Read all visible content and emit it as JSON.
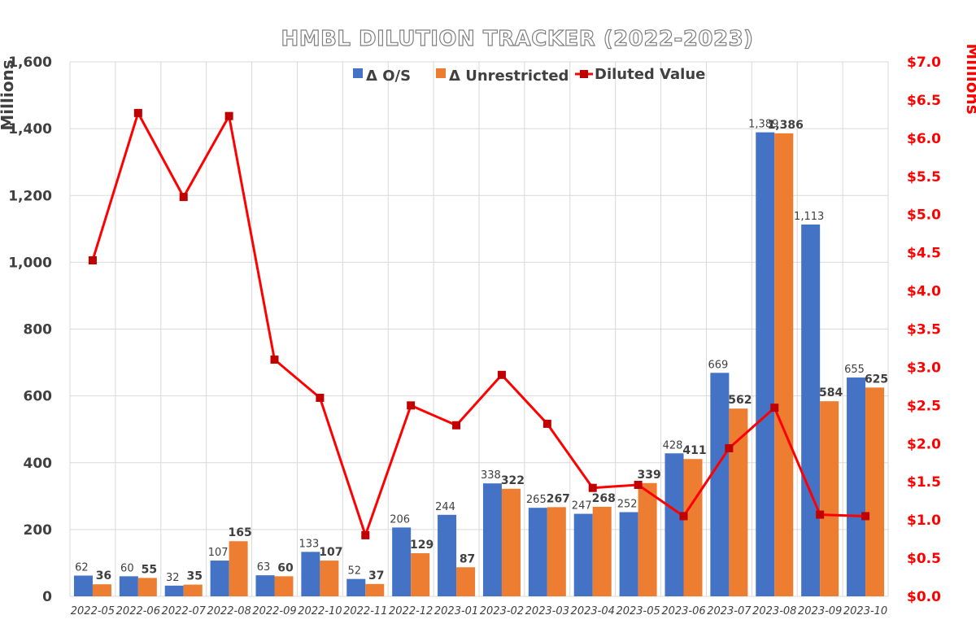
{
  "chart_data": {
    "type": "bar",
    "title": "HMBL DILUTION TRACKER (2022-2023)",
    "ylabel": "Millions",
    "y2label": "Millions",
    "ylim": [
      0,
      1600
    ],
    "y2lim": [
      0,
      7
    ],
    "yticks": [
      "0",
      "200",
      "400",
      "600",
      "800",
      "1,000",
      "1,200",
      "1,400",
      "1,600"
    ],
    "y2ticks": [
      "$0.0",
      "$0.5",
      "$1.0",
      "$1.5",
      "$2.0",
      "$2.5",
      "$3.0",
      "$3.5",
      "$4.0",
      "$4.5",
      "$5.0",
      "$5.5",
      "$6.0",
      "$6.5",
      "$7.0"
    ],
    "grid": true,
    "legend": "top-center",
    "categories": [
      "2022-05",
      "2022-06",
      "2022-07",
      "2022-08",
      "2022-09",
      "2022-10",
      "2022-11",
      "2022-12",
      "2023-01",
      "2023-02",
      "2023-03",
      "2023-04",
      "2023-05",
      "2023-06",
      "2023-07",
      "2023-08",
      "2023-09",
      "2023-10"
    ],
    "series": [
      {
        "name": "Δ O/S",
        "type": "bar",
        "color": "#4472c4",
        "values": [
          62,
          60,
          32,
          107,
          63,
          133,
          52,
          206,
          244,
          338,
          265,
          247,
          252,
          428,
          669,
          1389,
          1113,
          655
        ],
        "labels": [
          "62",
          "60",
          "32",
          "107",
          "63",
          "133",
          "52",
          "206",
          "244",
          "338",
          "265",
          "247",
          "252",
          "428",
          "669",
          "1,389",
          "1,113",
          "655"
        ]
      },
      {
        "name": "Δ Unrestricted",
        "type": "bar",
        "color": "#ed7d31",
        "values": [
          36,
          55,
          35,
          165,
          60,
          107,
          37,
          129,
          87,
          322,
          267,
          268,
          339,
          411,
          562,
          1386,
          584,
          625
        ],
        "labels": [
          "36",
          "55",
          "35",
          "165",
          "60",
          "107",
          "37",
          "129",
          "87",
          "322",
          "267",
          "268",
          "339",
          "411",
          "562",
          "1,386",
          "584",
          "625"
        ]
      },
      {
        "name": "Diluted Value",
        "type": "line",
        "axis": "right",
        "color": "#ff0000",
        "values": [
          4.4,
          6.33,
          5.23,
          6.29,
          3.1,
          2.6,
          0.8,
          2.5,
          2.24,
          2.9,
          2.26,
          1.42,
          1.46,
          1.05,
          1.94,
          2.47,
          1.07,
          1.05
        ]
      }
    ]
  }
}
